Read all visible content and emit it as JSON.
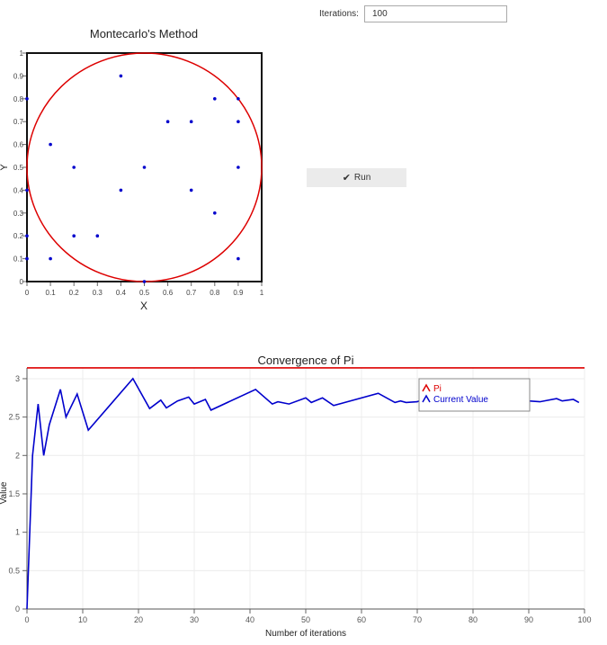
{
  "controls": {
    "iterations_label": "Iterations:",
    "iterations_value": "100",
    "run_label": "Run",
    "run_icon": "checkmark-icon"
  },
  "chart_data": [
    {
      "type": "scatter",
      "title": "Montecarlo's Method",
      "xlabel": "X",
      "ylabel": "Y",
      "xlim": [
        0,
        1
      ],
      "ylim": [
        0,
        1
      ],
      "xticks": [
        "0",
        "0.1",
        "0.2",
        "0.3",
        "0.4",
        "0.5",
        "0.6",
        "0.7",
        "0.8",
        "0.9",
        "1"
      ],
      "yticks": [
        "0",
        "0.1",
        "0.2",
        "0.3",
        "0.4",
        "0.5",
        "0.6",
        "0.7",
        "0.8",
        "0.9",
        "1"
      ],
      "point_color": "#0000cc",
      "circle": {
        "cx": 0.5,
        "cy": 0.5,
        "r": 0.5,
        "color": "#dd0000"
      },
      "points": [
        {
          "x": 0.4,
          "y": 0.9
        },
        {
          "x": 0.0,
          "y": 0.8
        },
        {
          "x": 0.8,
          "y": 0.8
        },
        {
          "x": 0.9,
          "y": 0.8
        },
        {
          "x": 0.6,
          "y": 0.7
        },
        {
          "x": 0.7,
          "y": 0.7
        },
        {
          "x": 0.9,
          "y": 0.7
        },
        {
          "x": 0.1,
          "y": 0.6
        },
        {
          "x": 0.2,
          "y": 0.5
        },
        {
          "x": 0.5,
          "y": 0.5
        },
        {
          "x": 0.9,
          "y": 0.5
        },
        {
          "x": 0.0,
          "y": 0.4
        },
        {
          "x": 0.4,
          "y": 0.4
        },
        {
          "x": 0.7,
          "y": 0.4
        },
        {
          "x": 0.8,
          "y": 0.3
        },
        {
          "x": 0.0,
          "y": 0.2
        },
        {
          "x": 0.2,
          "y": 0.2
        },
        {
          "x": 0.3,
          "y": 0.2
        },
        {
          "x": 0.0,
          "y": 0.1
        },
        {
          "x": 0.1,
          "y": 0.1
        },
        {
          "x": 0.9,
          "y": 0.1
        },
        {
          "x": 0.5,
          "y": 0.0
        }
      ]
    },
    {
      "type": "line",
      "title": "Convergence of Pi",
      "xlabel": "Number of iterations",
      "ylabel": "Value",
      "xlim": [
        0,
        100
      ],
      "ylim": [
        0,
        3.14
      ],
      "xticks": [
        "0",
        "10",
        "20",
        "30",
        "40",
        "50",
        "60",
        "70",
        "80",
        "90",
        "100"
      ],
      "yticks": [
        "0",
        "0.5",
        "1",
        "1.5",
        "2",
        "2.5",
        "3"
      ],
      "grid": true,
      "legend_position": "top-right",
      "series": [
        {
          "name": "Pi",
          "color": "#dd0000",
          "x": [
            0,
            100
          ],
          "values": [
            3.14159,
            3.14159
          ]
        },
        {
          "name": "Current Value",
          "color": "#0000cc",
          "x": [
            0,
            1,
            2,
            3,
            4,
            6,
            7,
            9,
            11,
            19,
            22,
            24,
            25,
            27,
            29,
            30,
            32,
            33,
            41,
            44,
            45,
            47,
            50,
            51,
            53,
            55,
            63,
            66,
            67,
            68,
            70,
            71,
            72,
            74,
            75,
            77,
            85,
            87,
            88,
            89,
            90,
            92,
            95,
            96,
            98,
            99
          ],
          "values": [
            0,
            2.0,
            2.67,
            2.0,
            2.4,
            2.86,
            2.5,
            2.8,
            2.33,
            3.0,
            2.61,
            2.72,
            2.62,
            2.71,
            2.76,
            2.67,
            2.73,
            2.59,
            2.86,
            2.67,
            2.7,
            2.67,
            2.75,
            2.69,
            2.75,
            2.65,
            2.81,
            2.69,
            2.71,
            2.69,
            2.7,
            2.73,
            2.7,
            2.73,
            2.67,
            2.7,
            2.8,
            2.7,
            2.72,
            2.7,
            2.71,
            2.7,
            2.74,
            2.71,
            2.73,
            2.69
          ]
        }
      ]
    }
  ]
}
